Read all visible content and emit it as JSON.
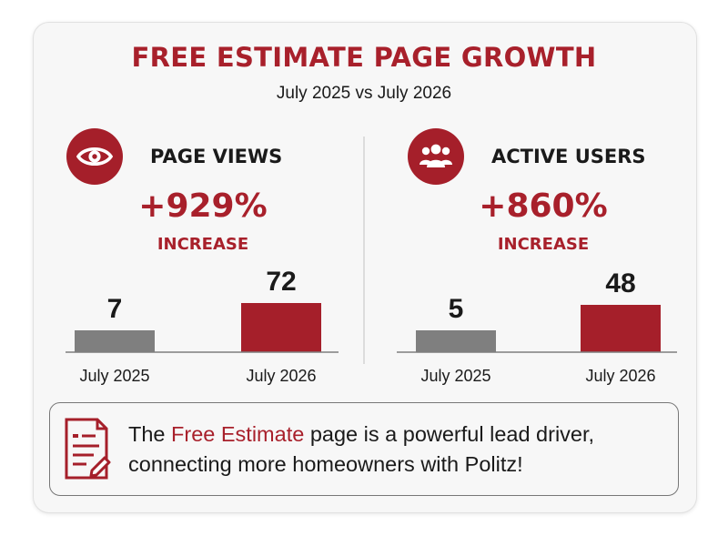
{
  "title": "FREE ESTIMATE PAGE GROWTH",
  "subtitle": "July 2025 vs July 2026",
  "accent_color": "#a8202b",
  "baseline_color": "#7f7f7f",
  "metrics": [
    {
      "label": "PAGE VIEWS",
      "icon": "eye-icon",
      "change": "+929%",
      "change_label": "INCREASE"
    },
    {
      "label": "ACTIVE USERS",
      "icon": "users-icon",
      "change": "+860%",
      "change_label": "INCREASE"
    }
  ],
  "chart_data": [
    {
      "type": "bar",
      "title": "PAGE VIEWS",
      "categories": [
        "July 2025",
        "July 2026"
      ],
      "values": [
        7,
        72
      ],
      "colors": [
        "#7f7f7f",
        "#a51f2a"
      ]
    },
    {
      "type": "bar",
      "title": "ACTIVE USERS",
      "categories": [
        "July 2025",
        "July 2026"
      ],
      "values": [
        5,
        48
      ],
      "colors": [
        "#7f7f7f",
        "#a51f2a"
      ]
    }
  ],
  "note": {
    "icon": "document-edit-icon",
    "text_before": "The ",
    "highlight": "Free Estimate",
    "text_after": " page is a powerful lead driver, connecting more homeowners with Politz!"
  }
}
